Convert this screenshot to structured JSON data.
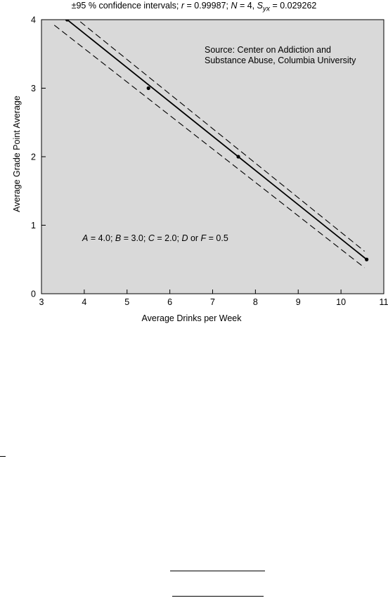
{
  "chart_data": {
    "type": "scatter",
    "title_prefix": "±95 % confidence intervals; ",
    "stats": [
      {
        "sym": "r",
        "sub": "",
        "text": " = 0.99987; "
      },
      {
        "sym": "N",
        "sub": "",
        "text": " = 4, "
      },
      {
        "sym": "S",
        "sub": "yx",
        "text": " = 0.029262"
      }
    ],
    "xlabel": "Average Drinks per Week",
    "ylabel": "Average Grade Point Average",
    "xlim": [
      3,
      11
    ],
    "ylim": [
      0,
      4
    ],
    "x_ticks": [
      3,
      4,
      5,
      6,
      7,
      8,
      9,
      10,
      11
    ],
    "y_ticks": [
      0,
      1,
      2,
      3,
      4
    ],
    "background": "#d9d9d9",
    "grid": false,
    "points": [
      {
        "x": 3.6,
        "y": 4.0
      },
      {
        "x": 5.5,
        "y": 3.0
      },
      {
        "x": 7.6,
        "y": 2.0
      },
      {
        "x": 10.6,
        "y": 0.5
      }
    ],
    "fit_line": {
      "x": [
        3.3,
        10.6
      ],
      "y": [
        4.15,
        0.5
      ]
    },
    "upper_ci": {
      "x": [
        3.55,
        10.55
      ],
      "y": [
        4.15,
        0.62
      ]
    },
    "lower_ci": {
      "x": [
        3.3,
        10.55
      ],
      "y": [
        3.92,
        0.38
      ]
    },
    "annotation_source": [
      "Source: Center on Addiction and",
      "Substance Abuse, Columbia University"
    ],
    "annotation_grades": [
      {
        "t": "A",
        "i": true
      },
      {
        "t": " = 4.0; ",
        "i": false
      },
      {
        "t": "B",
        "i": true
      },
      {
        "t": " = 3.0; ",
        "i": false
      },
      {
        "t": "C",
        "i": true
      },
      {
        "t": " = 2.0; ",
        "i": false
      },
      {
        "t": "D",
        "i": true
      },
      {
        "t": " or ",
        "i": false
      },
      {
        "t": "F",
        "i": true
      },
      {
        "t": " = 0.5",
        "i": false
      }
    ]
  }
}
